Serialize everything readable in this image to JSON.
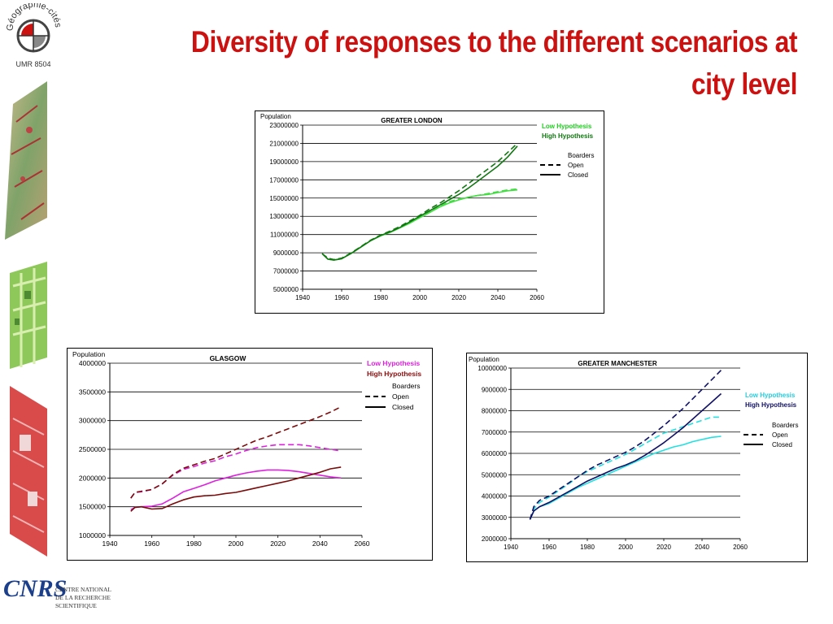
{
  "page": {
    "title_line1": "Diversity of responses to the different scenarios at",
    "title_line2": "city level"
  },
  "logo": {
    "name": "Géographie-cités",
    "unit": "UMR 8504"
  },
  "footer": {
    "line1": "CENTRE NATIONAL",
    "line2": "DE LA RECHERCHE",
    "line3": "SCIENTIFIQUE"
  },
  "chart_data": [
    {
      "id": "london",
      "type": "line",
      "title": "GREATER LONDON",
      "ylabel": "Population",
      "xlim": [
        1940,
        2060
      ],
      "ylim": [
        5000000,
        23000000
      ],
      "xticks": [
        1940,
        1960,
        1980,
        2000,
        2020,
        2040,
        2060
      ],
      "yticks": [
        5000000,
        7000000,
        9000000,
        11000000,
        13000000,
        15000000,
        17000000,
        19000000,
        21000000,
        23000000
      ],
      "grid": "horizontal",
      "legend": {
        "low": "Low Hypothesis",
        "high": "High Hypothesis",
        "header": "Boarders",
        "open": "Open",
        "closed": "Closed"
      },
      "colors": {
        "low": "#44dd44",
        "high": "#117711",
        "low_legend": "#22cc22",
        "high_legend": "#117711"
      },
      "series": [
        {
          "name": "Low Hypothesis",
          "scenario": "Open",
          "x": [
            1950,
            1953,
            1956,
            1960,
            1965,
            1970,
            1975,
            1980,
            1985,
            1990,
            1995,
            2000,
            2005,
            2010,
            2015,
            2020,
            2025,
            2030,
            2035,
            2040,
            2045,
            2050
          ],
          "values": [
            8900000,
            8400000,
            8250000,
            8400000,
            9000000,
            9700000,
            10400000,
            10900000,
            11300000,
            11800000,
            12300000,
            12900000,
            13500000,
            14100000,
            14600000,
            14900000,
            15100000,
            15300000,
            15500000,
            15700000,
            15900000,
            16000000
          ]
        },
        {
          "name": "Low Hypothesis",
          "scenario": "Closed",
          "x": [
            1950,
            1953,
            1956,
            1960,
            1965,
            1970,
            1975,
            1980,
            1985,
            1990,
            1995,
            2000,
            2005,
            2010,
            2015,
            2020,
            2025,
            2030,
            2035,
            2040,
            2045,
            2050
          ],
          "values": [
            8900000,
            8300000,
            8200000,
            8350000,
            8950000,
            9650000,
            10350000,
            10850000,
            11250000,
            11750000,
            12250000,
            12850000,
            13400000,
            14000000,
            14450000,
            14800000,
            15100000,
            15300000,
            15400000,
            15600000,
            15800000,
            15900000
          ]
        },
        {
          "name": "High Hypothesis",
          "scenario": "Open",
          "x": [
            1950,
            1953,
            1956,
            1960,
            1965,
            1970,
            1975,
            1980,
            1985,
            1990,
            1995,
            2000,
            2005,
            2010,
            2015,
            2020,
            2025,
            2030,
            2035,
            2040,
            2045,
            2050
          ],
          "values": [
            8900000,
            8400000,
            8250000,
            8400000,
            9000000,
            9700000,
            10400000,
            10950000,
            11400000,
            11900000,
            12500000,
            13100000,
            13800000,
            14400000,
            15100000,
            15800000,
            16600000,
            17400000,
            18200000,
            19000000,
            20000000,
            21000000
          ]
        },
        {
          "name": "High Hypothesis",
          "scenario": "Closed",
          "x": [
            1950,
            1953,
            1956,
            1960,
            1965,
            1970,
            1975,
            1980,
            1985,
            1990,
            1995,
            2000,
            2005,
            2010,
            2015,
            2020,
            2025,
            2030,
            2035,
            2040,
            2045,
            2050
          ],
          "values": [
            8900000,
            8300000,
            8200000,
            8350000,
            8950000,
            9650000,
            10350000,
            10900000,
            11300000,
            11800000,
            12400000,
            13000000,
            13600000,
            14200000,
            14800000,
            15400000,
            16100000,
            16900000,
            17700000,
            18500000,
            19500000,
            20700000
          ]
        }
      ]
    },
    {
      "id": "glasgow",
      "type": "line",
      "title": "GLASGOW",
      "ylabel": "Population",
      "xlim": [
        1940,
        2060
      ],
      "ylim": [
        1000000,
        4000000
      ],
      "xticks": [
        1940,
        1960,
        1980,
        2000,
        2020,
        2040,
        2060
      ],
      "yticks": [
        1000000,
        1500000,
        2000000,
        2500000,
        3000000,
        3500000,
        4000000
      ],
      "grid": "horizontal",
      "legend": {
        "low": "Low Hypothesis",
        "high": "High Hypothesis",
        "header": "Boarders",
        "open": "Open",
        "closed": "Closed"
      },
      "colors": {
        "low": "#dd22dd",
        "high": "#7a0a0a",
        "low_legend": "#dd22dd",
        "high_legend": "#8b0a0a"
      },
      "series": [
        {
          "name": "Low Hypothesis",
          "scenario": "Open",
          "x": [
            1950,
            1952,
            1955,
            1960,
            1965,
            1970,
            1975,
            1980,
            1985,
            1990,
            1995,
            2000,
            2005,
            2010,
            2015,
            2020,
            2025,
            2030,
            2035,
            2040,
            2045,
            2050
          ],
          "values": [
            1650000,
            1750000,
            1760000,
            1800000,
            1900000,
            2050000,
            2150000,
            2200000,
            2260000,
            2300000,
            2370000,
            2420000,
            2480000,
            2530000,
            2560000,
            2580000,
            2580000,
            2580000,
            2560000,
            2530000,
            2500000,
            2470000
          ]
        },
        {
          "name": "Low Hypothesis",
          "scenario": "Closed",
          "x": [
            1950,
            1952,
            1955,
            1960,
            1965,
            1970,
            1975,
            1980,
            1985,
            1990,
            1995,
            2000,
            2005,
            2010,
            2015,
            2020,
            2025,
            2030,
            2035,
            2040,
            2045,
            2050
          ],
          "values": [
            1450000,
            1490000,
            1500000,
            1510000,
            1550000,
            1650000,
            1760000,
            1820000,
            1880000,
            1950000,
            2000000,
            2050000,
            2090000,
            2120000,
            2140000,
            2140000,
            2130000,
            2110000,
            2080000,
            2050000,
            2020000,
            2000000
          ]
        },
        {
          "name": "High Hypothesis",
          "scenario": "Open",
          "x": [
            1950,
            1952,
            1955,
            1960,
            1965,
            1970,
            1975,
            1980,
            1985,
            1990,
            1995,
            2000,
            2005,
            2010,
            2015,
            2020,
            2025,
            2030,
            2035,
            2040,
            2045,
            2050
          ],
          "values": [
            1650000,
            1750000,
            1770000,
            1800000,
            1900000,
            2060000,
            2170000,
            2230000,
            2290000,
            2340000,
            2420000,
            2500000,
            2580000,
            2660000,
            2720000,
            2790000,
            2860000,
            2930000,
            3000000,
            3070000,
            3150000,
            3240000
          ]
        },
        {
          "name": "High Hypothesis",
          "scenario": "Closed",
          "x": [
            1950,
            1952,
            1955,
            1960,
            1965,
            1970,
            1975,
            1980,
            1985,
            1990,
            1995,
            2000,
            2005,
            2010,
            2015,
            2020,
            2025,
            2030,
            2035,
            2040,
            2045,
            2050
          ],
          "values": [
            1420000,
            1490000,
            1500000,
            1460000,
            1470000,
            1550000,
            1620000,
            1670000,
            1690000,
            1700000,
            1730000,
            1750000,
            1790000,
            1830000,
            1870000,
            1910000,
            1950000,
            2000000,
            2050000,
            2100000,
            2160000,
            2190000
          ]
        }
      ]
    },
    {
      "id": "manchester",
      "type": "line",
      "title": "GREATER MANCHESTER",
      "ylabel": "Population",
      "xlim": [
        1940,
        2060
      ],
      "ylim": [
        2000000,
        10000000
      ],
      "xticks": [
        1940,
        1960,
        1980,
        2000,
        2020,
        2040,
        2060
      ],
      "yticks": [
        2000000,
        3000000,
        4000000,
        5000000,
        6000000,
        7000000,
        8000000,
        9000000,
        10000000
      ],
      "grid": "horizontal",
      "legend": {
        "low": "Low Hypothesis",
        "high": "High Hypothesis",
        "header": "Boarders",
        "open": "Open",
        "closed": "Closed"
      },
      "colors": {
        "low": "#22e0e0",
        "high": "#111166",
        "low_legend": "#22ccdd",
        "high_legend": "#111166"
      },
      "series": [
        {
          "name": "Low Hypothesis",
          "scenario": "Open",
          "x": [
            1950,
            1952,
            1955,
            1960,
            1965,
            1970,
            1975,
            1980,
            1985,
            1990,
            1995,
            2000,
            2005,
            2010,
            2015,
            2020,
            2025,
            2030,
            2035,
            2040,
            2045,
            2050
          ],
          "values": [
            2900000,
            3400000,
            3700000,
            3950000,
            4250000,
            4550000,
            4900000,
            5150000,
            5350000,
            5550000,
            5750000,
            5950000,
            6200000,
            6450000,
            6700000,
            6950000,
            7100000,
            7250000,
            7400000,
            7550000,
            7700000,
            7700000
          ]
        },
        {
          "name": "Low Hypothesis",
          "scenario": "Closed",
          "x": [
            1950,
            1952,
            1955,
            1960,
            1965,
            1970,
            1975,
            1980,
            1985,
            1990,
            1995,
            2000,
            2005,
            2010,
            2015,
            2020,
            2025,
            2030,
            2035,
            2040,
            2045,
            2050
          ],
          "values": [
            2900000,
            3300000,
            3500000,
            3650000,
            3900000,
            4150000,
            4400000,
            4600000,
            4800000,
            5000000,
            5200000,
            5400000,
            5600000,
            5800000,
            6000000,
            6150000,
            6300000,
            6400000,
            6550000,
            6650000,
            6750000,
            6800000
          ]
        },
        {
          "name": "High Hypothesis",
          "scenario": "Open",
          "x": [
            1950,
            1952,
            1955,
            1960,
            1965,
            1970,
            1975,
            1980,
            1985,
            1990,
            1995,
            2000,
            2005,
            2010,
            2015,
            2020,
            2025,
            2030,
            2035,
            2040,
            2045,
            2050
          ],
          "values": [
            2900000,
            3500000,
            3800000,
            4000000,
            4300000,
            4600000,
            4900000,
            5200000,
            5450000,
            5650000,
            5850000,
            6050000,
            6300000,
            6600000,
            6950000,
            7300000,
            7700000,
            8100000,
            8550000,
            9000000,
            9450000,
            9900000
          ]
        },
        {
          "name": "High Hypothesis",
          "scenario": "Closed",
          "x": [
            1950,
            1952,
            1955,
            1960,
            1965,
            1970,
            1975,
            1980,
            1985,
            1990,
            1995,
            2000,
            2005,
            2010,
            2015,
            2020,
            2025,
            2030,
            2035,
            2040,
            2045,
            2050
          ],
          "values": [
            2900000,
            3300000,
            3500000,
            3700000,
            3950000,
            4200000,
            4450000,
            4700000,
            4900000,
            5100000,
            5300000,
            5450000,
            5650000,
            5900000,
            6200000,
            6500000,
            6850000,
            7200000,
            7600000,
            8000000,
            8400000,
            8800000
          ]
        }
      ]
    }
  ]
}
